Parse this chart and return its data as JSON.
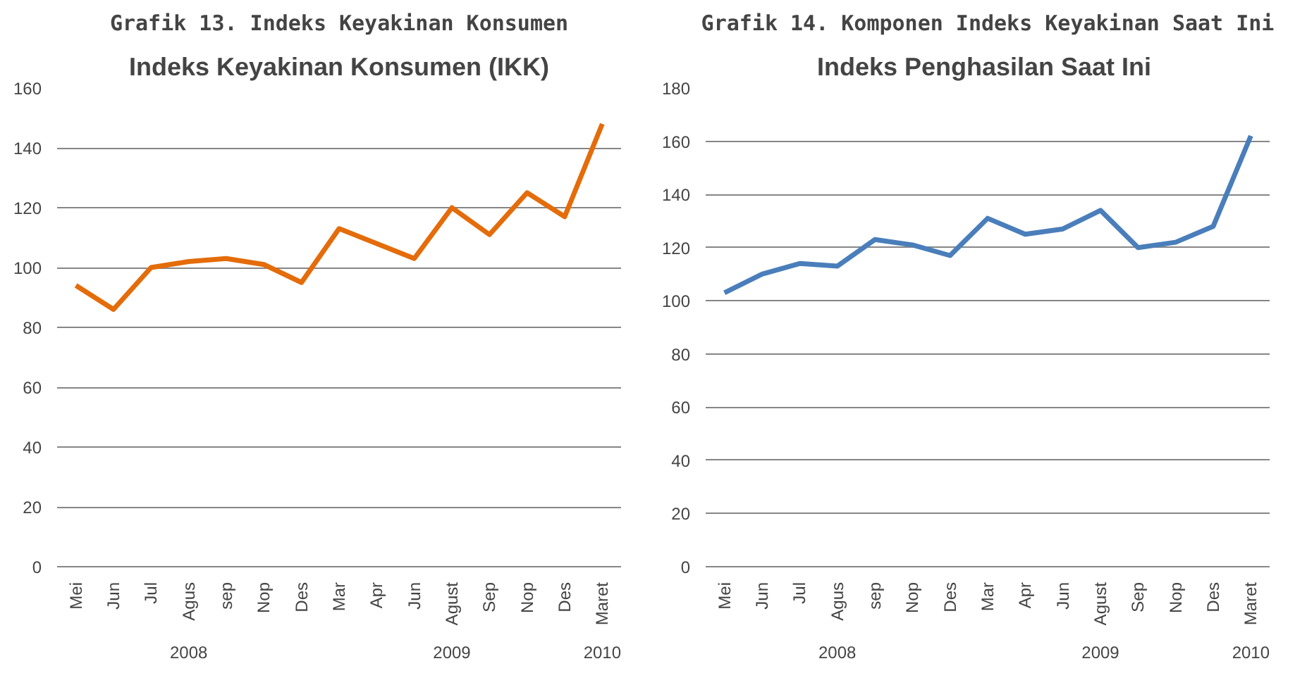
{
  "chart_data": [
    {
      "type": "line",
      "title": "Grafik 13. Indeks Keyakinan Konsumen",
      "subtitle": "Indeks Keyakinan Konsumen (IKK)",
      "categories": [
        "Mei",
        "Jun",
        "Jul",
        "Agus",
        "sep",
        "Nop",
        "Des",
        "Mar",
        "Apr",
        "Jun",
        "Agust",
        "Sep",
        "Nop",
        "Des",
        "Maret"
      ],
      "series": [
        {
          "color": "#e46c0a",
          "values": [
            94,
            86,
            100,
            102,
            103,
            101,
            95,
            113,
            108,
            103,
            120,
            111,
            125,
            117,
            148
          ]
        }
      ],
      "ylim": [
        0,
        160
      ],
      "yticks": [
        0,
        20,
        40,
        60,
        80,
        100,
        120,
        140,
        160
      ],
      "grid": "y",
      "annotations": [
        "2008",
        "2009",
        "2010"
      ]
    },
    {
      "type": "line",
      "title": "Grafik 14. Komponen Indeks Keyakinan Saat Ini",
      "subtitle": "Indeks Penghasilan  Saat Ini",
      "categories": [
        "Mei",
        "Jun",
        "Jul",
        "Agus",
        "sep",
        "Nop",
        "Des",
        "Mar",
        "Apr",
        "Jun",
        "Agust",
        "Sep",
        "Nop",
        "Des",
        "Maret"
      ],
      "series": [
        {
          "color": "#4a7ebb",
          "values": [
            103,
            110,
            114,
            113,
            123,
            121,
            117,
            131,
            125,
            127,
            134,
            120,
            122,
            128,
            162
          ]
        }
      ],
      "ylim": [
        0,
        180
      ],
      "yticks": [
        0,
        20,
        40,
        60,
        80,
        100,
        120,
        140,
        160,
        180
      ],
      "grid": "y",
      "annotations": [
        "2008",
        "2009",
        "2010"
      ]
    }
  ]
}
